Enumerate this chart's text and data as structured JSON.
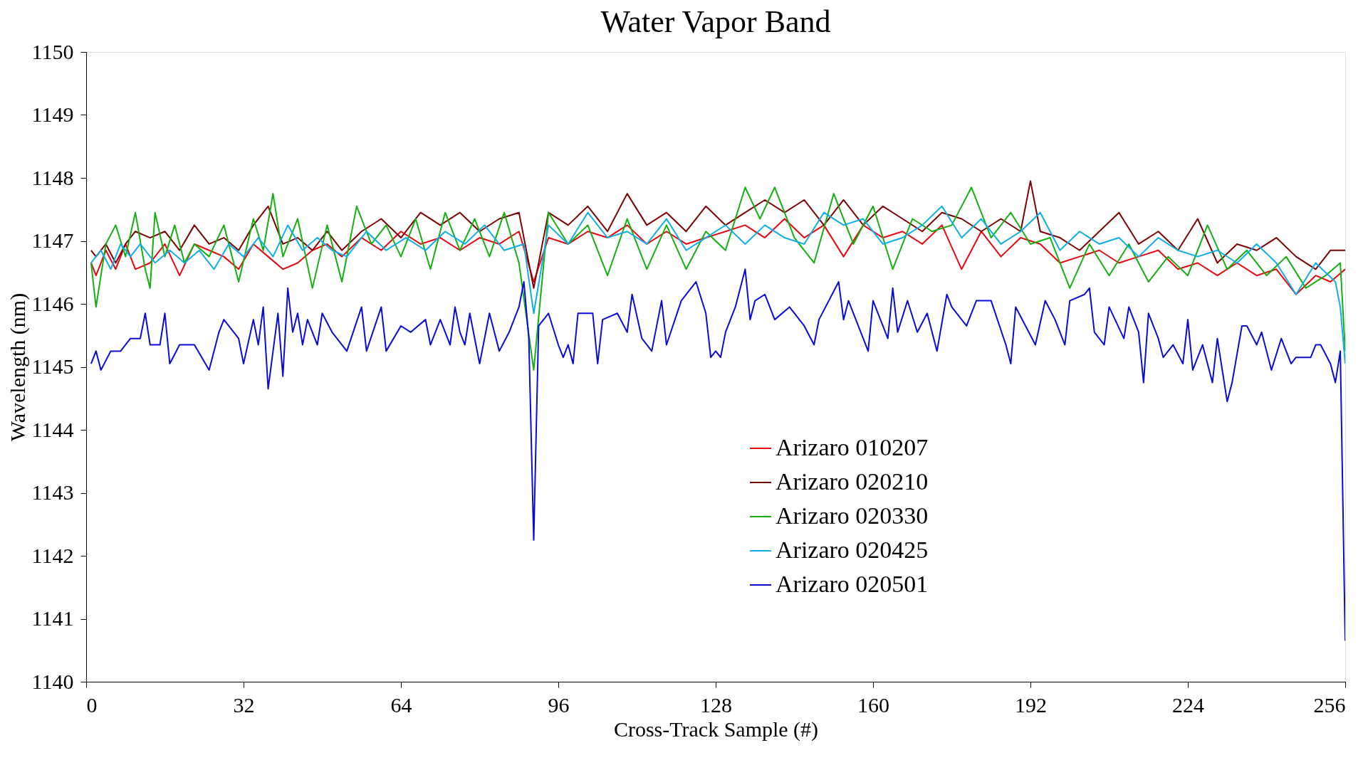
{
  "chart_data": {
    "type": "line",
    "title": "Water Vapor Band",
    "xlabel": "Cross-Track Sample (#)",
    "ylabel": "Wavelength (nm)",
    "xlim": [
      0,
      256
    ],
    "xticks": [
      0,
      32,
      64,
      96,
      128,
      160,
      192,
      224,
      256
    ],
    "ylim": [
      1140,
      1150
    ],
    "yticks": [
      1140,
      1141,
      1142,
      1143,
      1144,
      1145,
      1146,
      1147,
      1148,
      1149,
      1150
    ],
    "grid": false,
    "legend": "bottom right",
    "marker": "none",
    "line_style": "solid",
    "series": [
      {
        "name": "Arizaro 010207",
        "color": "#e8070f",
        "x": [
          1,
          2,
          4,
          6,
          8,
          10,
          13,
          16,
          19,
          22,
          25,
          28,
          31,
          34,
          37,
          40,
          43,
          46,
          49,
          52,
          56,
          60,
          64,
          68,
          72,
          76,
          80,
          84,
          88,
          91,
          94,
          98,
          102,
          106,
          110,
          114,
          118,
          122,
          126,
          130,
          134,
          138,
          142,
          146,
          150,
          154,
          158,
          162,
          166,
          170,
          174,
          178,
          182,
          186,
          190,
          194,
          198,
          202,
          206,
          210,
          214,
          218,
          222,
          226,
          230,
          234,
          238,
          242,
          246,
          250,
          253,
          256
        ],
        "values": [
          1146.65,
          1146.45,
          1146.85,
          1146.55,
          1146.95,
          1146.55,
          1146.65,
          1146.95,
          1146.45,
          1146.95,
          1146.85,
          1146.75,
          1146.55,
          1146.95,
          1146.75,
          1146.55,
          1146.65,
          1146.85,
          1146.95,
          1146.75,
          1147.05,
          1146.85,
          1147.15,
          1146.95,
          1147.05,
          1146.85,
          1147.05,
          1146.95,
          1147.15,
          1146.35,
          1147.05,
          1146.95,
          1147.15,
          1147.05,
          1147.25,
          1146.95,
          1147.15,
          1146.95,
          1147.05,
          1147.15,
          1147.25,
          1147.05,
          1147.35,
          1147.05,
          1147.25,
          1146.75,
          1147.25,
          1147.05,
          1147.15,
          1146.95,
          1147.25,
          1146.55,
          1147.15,
          1146.75,
          1147.05,
          1146.95,
          1146.65,
          1146.75,
          1146.85,
          1146.65,
          1146.75,
          1146.85,
          1146.55,
          1146.65,
          1146.45,
          1146.65,
          1146.45,
          1146.55,
          1146.15,
          1146.45,
          1146.35,
          1146.55
        ]
      },
      {
        "name": "Arizaro 020210",
        "color": "#7f0000",
        "x": [
          1,
          2,
          4,
          6,
          8,
          10,
          13,
          16,
          19,
          22,
          25,
          28,
          31,
          34,
          37,
          40,
          43,
          46,
          49,
          52,
          56,
          60,
          64,
          68,
          72,
          76,
          80,
          84,
          88,
          91,
          94,
          98,
          102,
          106,
          110,
          114,
          118,
          122,
          126,
          130,
          134,
          138,
          142,
          146,
          150,
          154,
          158,
          162,
          166,
          170,
          174,
          178,
          182,
          186,
          190,
          192,
          194,
          198,
          202,
          206,
          210,
          214,
          218,
          222,
          226,
          230,
          234,
          238,
          242,
          246,
          250,
          253,
          256
        ],
        "values": [
          1146.85,
          1146.75,
          1146.95,
          1146.65,
          1146.95,
          1147.15,
          1147.05,
          1147.15,
          1146.85,
          1147.25,
          1146.95,
          1147.05,
          1146.85,
          1147.25,
          1147.55,
          1146.95,
          1147.05,
          1146.85,
          1147.15,
          1146.85,
          1147.15,
          1147.35,
          1147.05,
          1147.45,
          1147.25,
          1147.45,
          1147.15,
          1147.35,
          1147.45,
          1146.25,
          1147.45,
          1147.25,
          1147.55,
          1147.15,
          1147.75,
          1147.25,
          1147.45,
          1147.15,
          1147.55,
          1147.25,
          1147.45,
          1147.65,
          1147.45,
          1147.65,
          1147.25,
          1147.65,
          1147.25,
          1147.55,
          1147.35,
          1147.15,
          1147.45,
          1147.35,
          1147.15,
          1147.35,
          1147.15,
          1147.95,
          1147.15,
          1147.05,
          1146.85,
          1147.15,
          1147.45,
          1146.95,
          1147.15,
          1146.85,
          1147.35,
          1146.65,
          1146.95,
          1146.85,
          1147.05,
          1146.75,
          1146.55,
          1146.85,
          1146.85
        ]
      },
      {
        "name": "Arizaro 020330",
        "color": "#13b010",
        "x": [
          1,
          2,
          4,
          6,
          8,
          10,
          12,
          13,
          14,
          16,
          18,
          20,
          22,
          25,
          28,
          31,
          34,
          36,
          38,
          40,
          43,
          46,
          49,
          52,
          55,
          58,
          61,
          64,
          67,
          70,
          73,
          76,
          79,
          82,
          85,
          88,
          91,
          94,
          98,
          102,
          106,
          110,
          114,
          118,
          122,
          126,
          130,
          134,
          137,
          140,
          144,
          148,
          152,
          156,
          160,
          164,
          168,
          172,
          176,
          180,
          184,
          188,
          192,
          196,
          200,
          204,
          208,
          212,
          216,
          220,
          224,
          228,
          232,
          236,
          240,
          244,
          248,
          252,
          255,
          256
        ],
        "values": [
          1146.65,
          1145.95,
          1146.95,
          1147.25,
          1146.75,
          1147.45,
          1146.55,
          1146.25,
          1147.45,
          1146.75,
          1147.25,
          1146.65,
          1146.95,
          1146.75,
          1147.25,
          1146.35,
          1147.35,
          1146.85,
          1147.75,
          1146.75,
          1147.35,
          1146.25,
          1147.25,
          1146.35,
          1147.55,
          1146.95,
          1147.25,
          1146.75,
          1147.35,
          1146.55,
          1147.45,
          1146.85,
          1147.35,
          1146.75,
          1147.45,
          1146.65,
          1144.95,
          1147.45,
          1146.95,
          1147.25,
          1146.45,
          1147.35,
          1146.55,
          1147.25,
          1146.55,
          1147.15,
          1146.85,
          1147.85,
          1147.35,
          1147.85,
          1147.05,
          1146.65,
          1147.75,
          1146.95,
          1147.55,
          1146.55,
          1147.35,
          1147.15,
          1147.25,
          1147.85,
          1147.05,
          1147.45,
          1146.95,
          1147.05,
          1146.25,
          1146.95,
          1146.45,
          1146.95,
          1146.35,
          1146.75,
          1146.45,
          1147.25,
          1146.55,
          1146.85,
          1146.45,
          1146.75,
          1146.25,
          1146.45,
          1146.65,
          1145.25
        ]
      },
      {
        "name": "Arizaro 020425",
        "color": "#10aee8",
        "x": [
          1,
          3,
          5,
          7,
          9,
          11,
          14,
          17,
          20,
          23,
          26,
          29,
          32,
          35,
          38,
          41,
          44,
          47,
          50,
          53,
          57,
          61,
          65,
          69,
          73,
          77,
          81,
          85,
          89,
          91,
          94,
          98,
          102,
          106,
          110,
          114,
          118,
          122,
          126,
          130,
          134,
          138,
          142,
          146,
          150,
          154,
          158,
          162,
          166,
          170,
          174,
          178,
          182,
          186,
          190,
          194,
          198,
          202,
          206,
          210,
          214,
          218,
          222,
          226,
          230,
          234,
          238,
          242,
          246,
          250,
          254,
          255,
          256
        ],
        "values": [
          1146.65,
          1146.85,
          1146.55,
          1146.95,
          1146.75,
          1146.95,
          1146.65,
          1146.85,
          1146.65,
          1146.85,
          1146.55,
          1146.95,
          1146.75,
          1147.05,
          1146.75,
          1147.25,
          1146.85,
          1147.05,
          1146.85,
          1146.75,
          1147.15,
          1146.85,
          1147.05,
          1146.85,
          1147.15,
          1146.95,
          1147.25,
          1146.85,
          1146.95,
          1145.85,
          1147.25,
          1146.95,
          1147.45,
          1147.05,
          1147.15,
          1146.95,
          1147.35,
          1146.85,
          1147.05,
          1147.25,
          1146.95,
          1147.25,
          1147.05,
          1146.95,
          1147.45,
          1147.25,
          1147.35,
          1146.95,
          1147.05,
          1147.25,
          1147.55,
          1147.05,
          1147.35,
          1146.95,
          1147.15,
          1147.45,
          1146.85,
          1147.15,
          1146.95,
          1147.05,
          1146.75,
          1147.05,
          1146.85,
          1146.75,
          1146.85,
          1146.65,
          1146.95,
          1146.65,
          1146.15,
          1146.65,
          1146.35,
          1145.95,
          1145.05
        ]
      },
      {
        "name": "Arizaro 020501",
        "color": "#0b0bd8",
        "x": [
          1,
          2,
          3,
          5,
          7,
          9,
          11,
          12,
          13,
          15,
          16,
          17,
          19,
          22,
          25,
          27,
          28,
          31,
          32,
          34,
          35,
          36,
          37,
          39,
          40,
          41,
          42,
          43,
          44,
          45,
          47,
          48,
          50,
          53,
          56,
          57,
          60,
          61,
          64,
          66,
          69,
          70,
          72,
          74,
          75,
          76,
          77,
          78,
          80,
          82,
          84,
          86,
          88,
          89,
          90,
          91,
          92,
          94,
          96,
          97,
          98,
          99,
          100,
          103,
          104,
          105,
          108,
          110,
          111,
          113,
          115,
          117,
          118,
          121,
          123,
          124,
          126,
          127,
          128,
          129,
          130,
          132,
          134,
          135,
          136,
          138,
          140,
          143,
          146,
          148,
          149,
          153,
          154,
          155,
          159,
          160,
          163,
          164,
          165,
          167,
          169,
          171,
          173,
          175,
          176,
          179,
          181,
          184,
          187,
          188,
          189,
          193,
          195,
          197,
          199,
          200,
          203,
          204,
          205,
          207,
          208,
          211,
          212,
          214,
          215,
          216,
          218,
          219,
          221,
          223,
          224,
          225,
          227,
          229,
          230,
          232,
          233,
          235,
          236,
          238,
          239,
          241,
          243,
          245,
          246,
          249,
          250,
          251,
          253,
          254,
          255,
          256
        ],
        "values": [
          1145.05,
          1145.25,
          1144.95,
          1145.25,
          1145.25,
          1145.45,
          1145.45,
          1145.85,
          1145.35,
          1145.35,
          1145.85,
          1145.05,
          1145.35,
          1145.35,
          1144.95,
          1145.55,
          1145.75,
          1145.45,
          1145.05,
          1145.75,
          1145.35,
          1145.95,
          1144.65,
          1145.85,
          1144.85,
          1146.25,
          1145.55,
          1145.85,
          1145.35,
          1145.75,
          1145.35,
          1145.85,
          1145.55,
          1145.25,
          1145.95,
          1145.25,
          1145.95,
          1145.25,
          1145.65,
          1145.55,
          1145.75,
          1145.35,
          1145.75,
          1145.35,
          1145.95,
          1145.55,
          1145.35,
          1145.85,
          1145.05,
          1145.85,
          1145.25,
          1145.55,
          1145.95,
          1146.35,
          1145.45,
          1142.25,
          1145.65,
          1145.85,
          1145.35,
          1145.15,
          1145.35,
          1145.05,
          1145.85,
          1145.85,
          1145.05,
          1145.75,
          1145.85,
          1145.55,
          1146.15,
          1145.45,
          1145.25,
          1146.05,
          1145.35,
          1146.05,
          1146.25,
          1146.35,
          1145.85,
          1145.15,
          1145.25,
          1145.15,
          1145.55,
          1145.95,
          1146.55,
          1145.75,
          1146.05,
          1146.15,
          1145.75,
          1145.95,
          1145.65,
          1145.35,
          1145.75,
          1146.35,
          1145.75,
          1146.05,
          1145.25,
          1146.05,
          1145.45,
          1146.25,
          1145.55,
          1146.05,
          1145.55,
          1145.85,
          1145.25,
          1146.15,
          1145.95,
          1145.65,
          1146.05,
          1146.05,
          1145.35,
          1145.05,
          1145.95,
          1145.35,
          1146.05,
          1145.75,
          1145.35,
          1146.05,
          1146.15,
          1146.25,
          1145.55,
          1145.35,
          1145.95,
          1145.45,
          1145.95,
          1145.55,
          1144.75,
          1145.85,
          1145.45,
          1145.15,
          1145.35,
          1145.05,
          1145.75,
          1144.95,
          1145.35,
          1144.75,
          1145.45,
          1144.45,
          1144.75,
          1145.65,
          1145.65,
          1145.35,
          1145.55,
          1144.95,
          1145.45,
          1145.05,
          1145.15,
          1145.15,
          1145.35,
          1145.35,
          1145.05,
          1144.75,
          1145.25,
          1140.65
        ]
      }
    ]
  }
}
